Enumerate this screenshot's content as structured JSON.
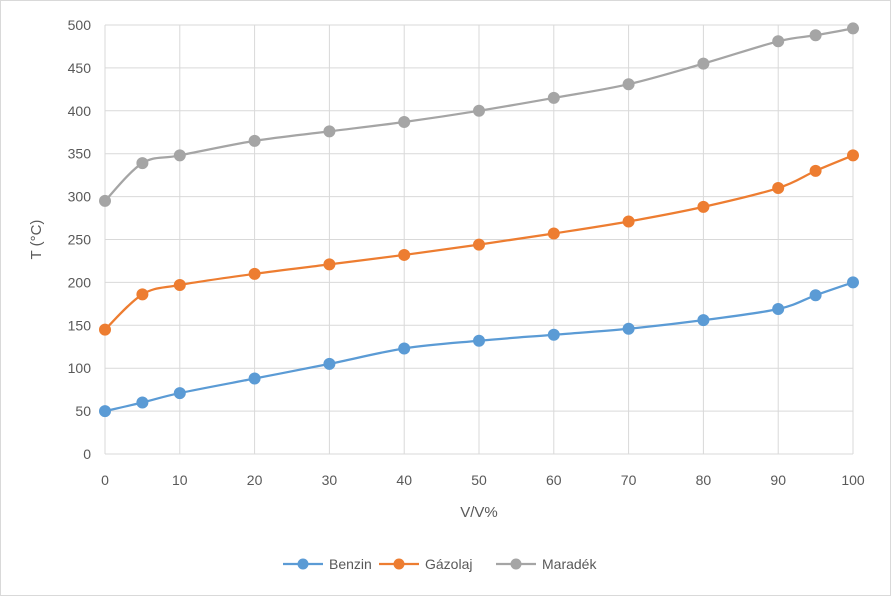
{
  "chart_data": {
    "type": "line",
    "title": "",
    "xlabel": "V/V%",
    "ylabel": "T (°C)",
    "x": [
      0,
      5,
      10,
      20,
      30,
      40,
      50,
      60,
      70,
      80,
      90,
      95,
      100
    ],
    "x_ticks": [
      "0",
      "10",
      "20",
      "30",
      "40",
      "50",
      "60",
      "70",
      "80",
      "90",
      "100"
    ],
    "xlim": [
      0,
      100
    ],
    "y_ticks": [
      "0",
      "50",
      "100",
      "150",
      "200",
      "250",
      "300",
      "350",
      "400",
      "450",
      "500"
    ],
    "ylim": [
      0,
      500
    ],
    "grid": true,
    "legend_position": "bottom",
    "series": [
      {
        "name": "Benzin",
        "color": "#5b9bd5",
        "values": [
          50,
          60,
          71,
          88,
          105,
          123,
          132,
          139,
          146,
          156,
          169,
          185,
          200
        ]
      },
      {
        "name": "Gázolaj",
        "color": "#ed7d31",
        "values": [
          145,
          186,
          197,
          210,
          221,
          232,
          244,
          257,
          271,
          288,
          310,
          330,
          348
        ]
      },
      {
        "name": "Maradék",
        "color": "#a5a5a5",
        "values": [
          295,
          339,
          348,
          365,
          376,
          387,
          400,
          415,
          431,
          455,
          481,
          488,
          496
        ]
      }
    ]
  }
}
